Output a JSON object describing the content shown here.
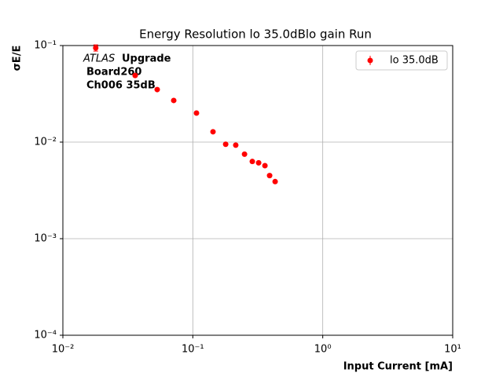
{
  "chart_data": {
    "type": "scatter",
    "title": "Energy Resolution lo 35.0dBlo gain Run",
    "xlabel": "Input Current [mA]",
    "ylabel": "σE/E",
    "annotations": [
      "ATLAS",
      "Upgrade",
      "Board260",
      "Ch006 35dB"
    ],
    "x": [
      0.0179,
      0.036,
      0.0532,
      0.0713,
      0.1067,
      0.143,
      0.179,
      0.214,
      0.25,
      0.287,
      0.321,
      0.359,
      0.39,
      0.43
    ],
    "series": [
      {
        "name": "lo 35.0dB",
        "color": "#ff0000",
        "values": [
          0.0946,
          0.049,
          0.035,
          0.027,
          0.02,
          0.0128,
          0.0095,
          0.0093,
          0.0075,
          0.0063,
          0.0061,
          0.0057,
          0.0045,
          0.0039
        ],
        "errors": [
          0.007,
          0.001,
          0.0006,
          0.0004,
          0.0003,
          0.0002,
          0.0001,
          0.0001,
          0.0001,
          0.0001,
          0.0001,
          0.0001,
          0.0001,
          0.0001
        ]
      }
    ],
    "xscale": "log",
    "yscale": "log",
    "xlim": [
      0.01,
      10
    ],
    "ylim": [
      0.0001,
      0.1
    ],
    "xticks": [
      {
        "value": 0.01,
        "label": "10⁻²"
      },
      {
        "value": 0.1,
        "label": "10⁻¹"
      },
      {
        "value": 1,
        "label": "10⁰"
      },
      {
        "value": 10,
        "label": "10¹"
      }
    ],
    "yticks": [
      {
        "value": 0.0001,
        "label": "10⁻⁴"
      },
      {
        "value": 0.001,
        "label": "10⁻³"
      },
      {
        "value": 0.01,
        "label": "10⁻²"
      },
      {
        "value": 0.1,
        "label": "10⁻¹"
      }
    ],
    "grid": true,
    "legend": "upper right"
  }
}
